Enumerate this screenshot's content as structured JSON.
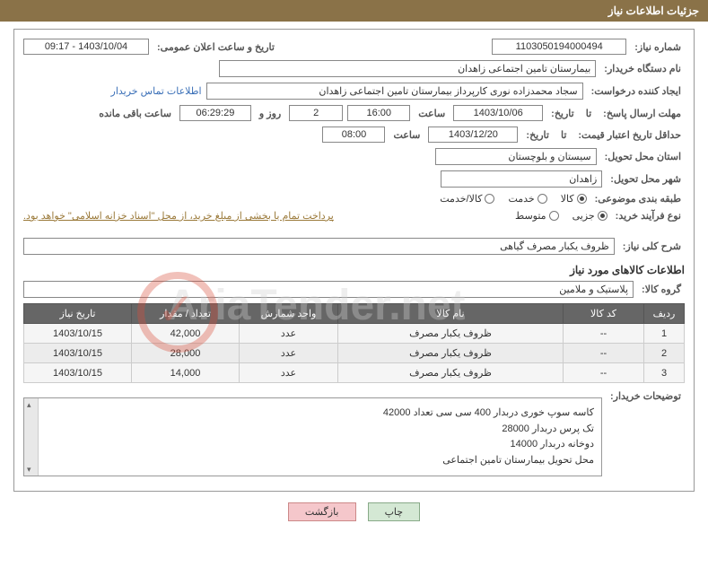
{
  "header": {
    "title": "جزئیات اطلاعات نیاز"
  },
  "fields": {
    "need_no_label": "شماره نیاز:",
    "need_no": "1103050194000494",
    "announce_label": "تاریخ و ساعت اعلان عمومی:",
    "announce": "1403/10/04 - 09:17",
    "buyer_org_label": "نام دستگاه خریدار:",
    "buyer_org": "بیمارستان تامین اجتماعی زاهدان",
    "requester_label": "ایجاد کننده درخواست:",
    "requester": "سجاد محمدزاده نوری کارپرداز بیمارستان تامین اجتماعی زاهدان",
    "contact_link": "اطلاعات تماس خریدار",
    "deadline_label": "مهلت ارسال پاسخ:",
    "to": "تا",
    "date_word": "تاریخ:",
    "deadline_date": "1403/10/06",
    "time_word": "ساعت",
    "deadline_time": "16:00",
    "days": "2",
    "days_word": "روز و",
    "remain_time": "06:29:29",
    "remain_label": "ساعت باقی مانده",
    "validity_label": "حداقل تاریخ اعتبار قیمت:",
    "validity_date": "1403/12/20",
    "validity_time": "08:00",
    "province_label": "استان محل تحویل:",
    "province": "سیستان و بلوچستان",
    "city_label": "شهر محل تحویل:",
    "city": "زاهدان",
    "category_label": "طبقه بندی موضوعی:",
    "cat_goods": "کالا",
    "cat_service": "خدمت",
    "cat_both": "کالا/خدمت",
    "process_label": "نوع فرآیند خرید:",
    "proc_small": "جزیی",
    "proc_medium": "متوسط",
    "payment_note": "پرداخت تمام یا بخشی از مبلغ خرید، از محل \"اسناد خزانه اسلامی\" خواهد بود.",
    "desc_label": "شرح کلی نیاز:",
    "desc": "ظروف یکبار مصرف گیاهی",
    "goods_section": "اطلاعات کالاهای مورد نیاز",
    "group_label": "گروه کالا:",
    "group": "پلاستیک و ملامین"
  },
  "table": {
    "headers": [
      "ردیف",
      "کد کالا",
      "نام کالا",
      "واحد شمارش",
      "تعداد / مقدار",
      "تاریخ نیاز"
    ],
    "rows": [
      [
        "1",
        "--",
        "ظروف یکبار مصرف",
        "عدد",
        "42,000",
        "1403/10/15"
      ],
      [
        "2",
        "--",
        "ظروف یکبار مصرف",
        "عدد",
        "28,000",
        "1403/10/15"
      ],
      [
        "3",
        "--",
        "ظروف یکبار مصرف",
        "عدد",
        "14,000",
        "1403/10/15"
      ]
    ]
  },
  "buyer_notes": {
    "label": "توضیحات خریدار:",
    "l1": "کاسه سوپ خوری دربدار 400 سی سی تعداد 42000",
    "l2": "تک پرس دربدار 28000",
    "l3": "دوخانه دربدار 14000",
    "l4": "محل تحویل بیمارستان تامین اجتماعی"
  },
  "buttons": {
    "print": "چاپ",
    "back": "بازگشت"
  },
  "watermark": "AriaTender.net",
  "col_widths": [
    "45px",
    "90px",
    "auto",
    "110px",
    "120px",
    "120px"
  ]
}
